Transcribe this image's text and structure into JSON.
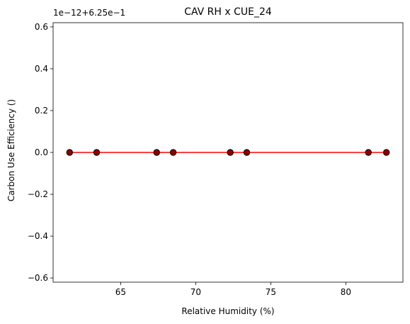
{
  "chart_data": {
    "type": "scatter",
    "title": "CAV RH x CUE_24",
    "xlabel": "Relative Humidity (%)",
    "ylabel": "Carbon Use Efficiency ()",
    "offset_text": "1e−12+6.25e−1",
    "xlim": [
      60.5,
      83.8
    ],
    "ylim": [
      -0.62,
      0.62
    ],
    "x_ticks": [
      65,
      70,
      75,
      80
    ],
    "y_ticks": [
      -0.6,
      -0.4,
      -0.2,
      0.0,
      0.2,
      0.4,
      0.6
    ],
    "x_tick_labels": [
      "65",
      "70",
      "75",
      "80"
    ],
    "y_tick_labels": [
      "−0.6",
      "−0.4",
      "−0.2",
      "0.0",
      "0.2",
      "0.4",
      "0.6"
    ],
    "grid": false,
    "series": [
      {
        "x": [
          61.6,
          63.4,
          67.4,
          68.5,
          72.3,
          73.4,
          81.5,
          82.7
        ],
        "y": [
          0,
          0,
          0,
          0,
          0,
          0,
          0,
          0
        ],
        "color": "#000000",
        "fill": "#8b0000"
      }
    ],
    "trend_line": {
      "x": [
        61.6,
        82.7
      ],
      "y": [
        0,
        0
      ],
      "color": "#ff0000"
    }
  }
}
